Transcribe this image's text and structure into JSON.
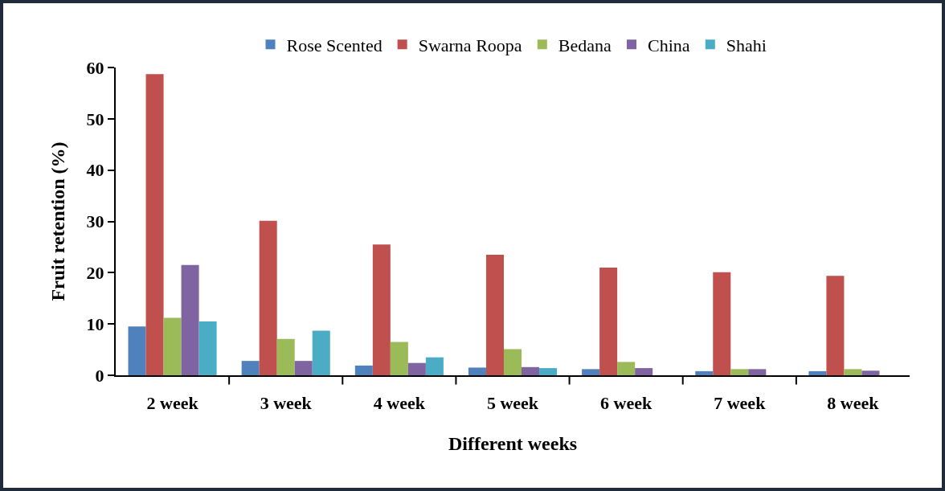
{
  "chart_data": {
    "type": "bar",
    "xlabel": "Different weeks",
    "ylabel": "Fruit retention (%)",
    "categories": [
      "2 week",
      "3 week",
      "4 week",
      "5 week",
      "6 week",
      "7 week",
      "8 week"
    ],
    "series": [
      {
        "name": "Rose Scented",
        "color": "#4f81bd",
        "values": [
          9.5,
          2.8,
          1.9,
          1.5,
          1.2,
          0.8,
          0.8
        ]
      },
      {
        "name": "Swarna Roopa",
        "color": "#c0504d",
        "values": [
          58.7,
          30.1,
          25.5,
          23.5,
          21.0,
          20.1,
          19.4
        ]
      },
      {
        "name": "Bedana",
        "color": "#9bbb59",
        "values": [
          11.2,
          7.1,
          6.5,
          5.1,
          2.6,
          1.2,
          1.2
        ]
      },
      {
        "name": "China",
        "color": "#8064a2",
        "values": [
          21.5,
          2.8,
          2.4,
          1.6,
          1.4,
          1.2,
          0.9
        ]
      },
      {
        "name": "Shahi",
        "color": "#4bacc6",
        "values": [
          10.5,
          8.7,
          3.5,
          1.4,
          null,
          null,
          null
        ]
      }
    ],
    "ylim": [
      0,
      60
    ],
    "yticks": [
      0,
      10,
      20,
      30,
      40,
      50,
      60
    ],
    "grid": false,
    "legend": "top"
  }
}
